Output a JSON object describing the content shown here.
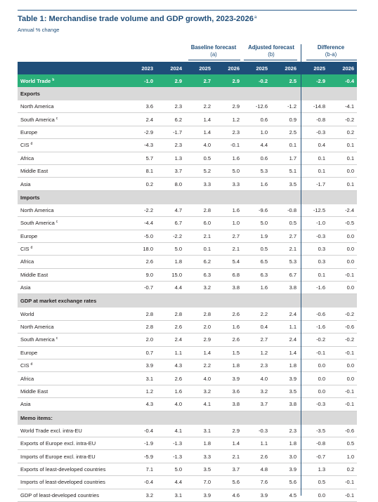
{
  "title": "Table 1: Merchandise trade volume and GDP growth, 2023-2026",
  "title_note": "a",
  "subtitle": "Annual % change",
  "groups": [
    {
      "label": "Baseline forecast",
      "sub": "(a)"
    },
    {
      "label": "Adjusted forecast",
      "sub": "(b)"
    },
    {
      "label": "Difference",
      "sub": "(b-a)"
    }
  ],
  "years": [
    "2023",
    "2024",
    "2025",
    "2026",
    "2025",
    "2026",
    "2025",
    "2026"
  ],
  "colors": {
    "header": "#1f4e79",
    "world": "#2bb07a",
    "section": "#d9d9d9"
  },
  "rows": [
    {
      "kind": "world",
      "label": "World Trade",
      "note": "b",
      "values": [
        "-1.0",
        "2.9",
        "2.7",
        "2.9",
        "-0.2",
        "2.5",
        "-2.9",
        "-0.4"
      ]
    },
    {
      "kind": "section",
      "label": "Exports"
    },
    {
      "kind": "data",
      "label": "North America",
      "note": "",
      "values": [
        "3.6",
        "2.3",
        "2.2",
        "2.9",
        "-12.6",
        "-1.2",
        "-14.8",
        "-4.1"
      ]
    },
    {
      "kind": "data",
      "label": "South America",
      "note": "c",
      "values": [
        "2.4",
        "6.2",
        "1.4",
        "1.2",
        "0.6",
        "0.9",
        "-0.8",
        "-0.2"
      ]
    },
    {
      "kind": "data",
      "label": "Europe",
      "note": "",
      "values": [
        "-2.9",
        "-1.7",
        "1.4",
        "2.3",
        "1.0",
        "2.5",
        "-0.3",
        "0.2"
      ]
    },
    {
      "kind": "data",
      "label": "CIS",
      "note": "d",
      "values": [
        "-4.3",
        "2.3",
        "4.0",
        "-0.1",
        "4.4",
        "0.1",
        "0.4",
        "0.1"
      ]
    },
    {
      "kind": "data",
      "label": "Africa",
      "note": "",
      "values": [
        "5.7",
        "1.3",
        "0.5",
        "1.6",
        "0.6",
        "1.7",
        "0.1",
        "0.1"
      ]
    },
    {
      "kind": "data",
      "label": "Middle East",
      "note": "",
      "values": [
        "8.1",
        "3.7",
        "5.2",
        "5.0",
        "5.3",
        "5.1",
        "0.1",
        "0.0"
      ]
    },
    {
      "kind": "data",
      "label": "Asia",
      "note": "",
      "values": [
        "0.2",
        "8.0",
        "3.3",
        "3.3",
        "1.6",
        "3.5",
        "-1.7",
        "0.1"
      ]
    },
    {
      "kind": "section",
      "label": "Imports"
    },
    {
      "kind": "data",
      "label": "North America",
      "note": "",
      "values": [
        "-2.2",
        "4.7",
        "2.8",
        "1.6",
        "-9.6",
        "-0.8",
        "-12.5",
        "-2.4"
      ]
    },
    {
      "kind": "data",
      "label": "South America",
      "note": "c",
      "values": [
        "-4.4",
        "6.7",
        "6.0",
        "1.0",
        "5.0",
        "0.5",
        "-1.0",
        "-0.5"
      ]
    },
    {
      "kind": "data",
      "label": "Europe",
      "note": "",
      "values": [
        "-5.0",
        "-2.2",
        "2.1",
        "2.7",
        "1.9",
        "2.7",
        "-0.3",
        "0.0"
      ]
    },
    {
      "kind": "data",
      "label": "CIS",
      "note": "d",
      "values": [
        "18.0",
        "5.0",
        "0.1",
        "2.1",
        "0.5",
        "2.1",
        "0.3",
        "0.0"
      ]
    },
    {
      "kind": "data",
      "label": "Africa",
      "note": "",
      "values": [
        "2.6",
        "1.8",
        "6.2",
        "5.4",
        "6.5",
        "5.3",
        "0.3",
        "0.0"
      ]
    },
    {
      "kind": "data",
      "label": "Middle East",
      "note": "",
      "values": [
        "9.0",
        "15.0",
        "6.3",
        "6.8",
        "6.3",
        "6.7",
        "0.1",
        "-0.1"
      ]
    },
    {
      "kind": "data",
      "label": "Asia",
      "note": "",
      "values": [
        "-0.7",
        "4.4",
        "3.2",
        "3.8",
        "1.6",
        "3.8",
        "-1.6",
        "0.0"
      ]
    },
    {
      "kind": "section",
      "label": "GDP at market exchange rates"
    },
    {
      "kind": "data",
      "label": "World",
      "note": "",
      "values": [
        "2.8",
        "2.8",
        "2.8",
        "2.6",
        "2.2",
        "2.4",
        "-0.6",
        "-0.2"
      ]
    },
    {
      "kind": "data",
      "label": "North America",
      "note": "",
      "values": [
        "2.8",
        "2.6",
        "2.0",
        "1.6",
        "0.4",
        "1.1",
        "-1.6",
        "-0.6"
      ]
    },
    {
      "kind": "data",
      "label": "South America",
      "note": "c",
      "values": [
        "2.0",
        "2.4",
        "2.9",
        "2.6",
        "2.7",
        "2.4",
        "-0.2",
        "-0.2"
      ]
    },
    {
      "kind": "data",
      "label": "Europe",
      "note": "",
      "values": [
        "0.7",
        "1.1",
        "1.4",
        "1.5",
        "1.2",
        "1.4",
        "-0.1",
        "-0.1"
      ]
    },
    {
      "kind": "data",
      "label": "CIS",
      "note": "d",
      "values": [
        "3.9",
        "4.3",
        "2.2",
        "1.8",
        "2.3",
        "1.8",
        "0.0",
        "0.0"
      ]
    },
    {
      "kind": "data",
      "label": "Africa",
      "note": "",
      "values": [
        "3.1",
        "2.6",
        "4.0",
        "3.9",
        "4.0",
        "3.9",
        "0.0",
        "0.0"
      ]
    },
    {
      "kind": "data",
      "label": "Middle East",
      "note": "",
      "values": [
        "1.2",
        "1.6",
        "3.2",
        "3.6",
        "3.2",
        "3.5",
        "0.0",
        "-0.1"
      ]
    },
    {
      "kind": "data",
      "label": "Asia",
      "note": "",
      "values": [
        "4.3",
        "4.0",
        "4.1",
        "3.8",
        "3.7",
        "3.8",
        "-0.3",
        "-0.1"
      ]
    },
    {
      "kind": "section",
      "label": "Memo items:"
    },
    {
      "kind": "data",
      "label": "World Trade excl. intra-EU",
      "note": "",
      "values": [
        "-0.4",
        "4.1",
        "3.1",
        "2.9",
        "-0.3",
        "2.3",
        "-3.5",
        "-0.6"
      ]
    },
    {
      "kind": "data",
      "label": "Exports of Europe excl. intra-EU",
      "note": "",
      "values": [
        "-1.9",
        "-1.3",
        "1.8",
        "1.4",
        "1.1",
        "1.8",
        "-0.8",
        "0.5"
      ]
    },
    {
      "kind": "data",
      "label": "Imports of Europe excl. intra-EU",
      "note": "",
      "values": [
        "-5.9",
        "-1.3",
        "3.3",
        "2.1",
        "2.6",
        "3.0",
        "-0.7",
        "1.0"
      ]
    },
    {
      "kind": "data",
      "label": "Exports of least-developed countries",
      "note": "",
      "values": [
        "7.1",
        "5.0",
        "3.5",
        "3.7",
        "4.8",
        "3.9",
        "1.3",
        "0.2"
      ]
    },
    {
      "kind": "data",
      "label": "Imports of least-developed countries",
      "note": "",
      "values": [
        "-0.4",
        "4.4",
        "7.0",
        "5.6",
        "7.6",
        "5.6",
        "0.5",
        "-0.1"
      ]
    },
    {
      "kind": "data",
      "label": "GDP of least-developed countries",
      "note": "",
      "values": [
        "3.2",
        "3.1",
        "3.9",
        "4.6",
        "3.9",
        "4.5",
        "0.0",
        "-0.1"
      ]
    }
  ]
}
